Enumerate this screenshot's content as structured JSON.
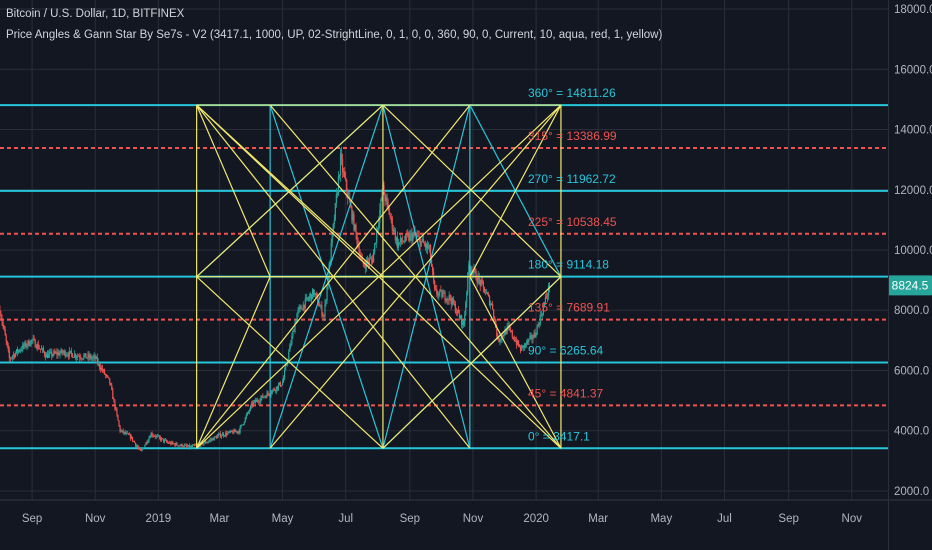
{
  "header": {
    "symbol_line": "Bitcoin / U.S. Dollar, 1D, BITFINEX",
    "indicator_line": "Price Angles & Gann Star By Se7s - V2 (3417.1, 1000, UP, 02-StrightLine, 0, 1, 0, 0, 360, 90, 0, Current, 10, aqua, red, 1, yellow)"
  },
  "colors": {
    "background": "#131722",
    "grid": "#2a2e39",
    "aqua": "#26c6da",
    "red": "#ef5350",
    "yellow": "#f2e86d",
    "candle_up": "#26a69a",
    "candle_down": "#ef5350",
    "axis_text": "#b2b5be",
    "current_price_bg": "#26a69a"
  },
  "chart_data": {
    "type": "candlestick",
    "symbol": "Bitcoin / U.S. Dollar",
    "interval": "1D",
    "exchange": "BITFINEX",
    "x_tick_labels": [
      "Sep",
      "Nov",
      "2019",
      "Mar",
      "May",
      "Jul",
      "Sep",
      "Nov",
      "2020",
      "Mar",
      "May",
      "Jul",
      "Sep",
      "Nov"
    ],
    "y_tick_labels": [
      "2000.0",
      "4000.0",
      "6000.0",
      "8000.0",
      "10000.0",
      "12000.0",
      "14000.0",
      "16000.0",
      "18000.0"
    ],
    "y_ticks": [
      2000,
      4000,
      6000,
      8000,
      10000,
      12000,
      14000,
      16000,
      18000
    ],
    "ylim": [
      1700,
      18300
    ],
    "current_price": "8824.5",
    "price_path": [
      [
        "2018-08-01",
        8000
      ],
      [
        "2018-08-10",
        6400
      ],
      [
        "2018-08-20",
        6700
      ],
      [
        "2018-09-01",
        7000
      ],
      [
        "2018-09-15",
        6500
      ],
      [
        "2018-10-01",
        6600
      ],
      [
        "2018-10-15",
        6500
      ],
      [
        "2018-11-01",
        6400
      ],
      [
        "2018-11-15",
        5600
      ],
      [
        "2018-11-25",
        4000
      ],
      [
        "2018-12-05",
        3800
      ],
      [
        "2018-12-15",
        3300
      ],
      [
        "2018-12-25",
        3900
      ],
      [
        "2019-01-10",
        3600
      ],
      [
        "2019-02-01",
        3450
      ],
      [
        "2019-02-15",
        3600
      ],
      [
        "2019-03-01",
        3850
      ],
      [
        "2019-03-20",
        4000
      ],
      [
        "2019-04-02",
        4900
      ],
      [
        "2019-04-20",
        5300
      ],
      [
        "2019-05-01",
        5600
      ],
      [
        "2019-05-15",
        7900
      ],
      [
        "2019-05-31",
        8600
      ],
      [
        "2019-06-10",
        7800
      ],
      [
        "2019-06-26",
        13000
      ],
      [
        "2019-07-05",
        11500
      ],
      [
        "2019-07-17",
        9500
      ],
      [
        "2019-07-27",
        9700
      ],
      [
        "2019-08-06",
        12000
      ],
      [
        "2019-08-20",
        10200
      ],
      [
        "2019-09-05",
        10500
      ],
      [
        "2019-09-20",
        10000
      ],
      [
        "2019-09-25",
        8600
      ],
      [
        "2019-10-10",
        8400
      ],
      [
        "2019-10-23",
        7500
      ],
      [
        "2019-10-28",
        9500
      ],
      [
        "2019-11-10",
        8800
      ],
      [
        "2019-11-20",
        8100
      ],
      [
        "2019-11-25",
        7000
      ],
      [
        "2019-12-05",
        7400
      ],
      [
        "2019-12-17",
        6700
      ],
      [
        "2019-12-31",
        7200
      ],
      [
        "2020-01-08",
        8100
      ],
      [
        "2020-01-14",
        8824.5
      ]
    ],
    "gann_levels": [
      {
        "label": "0° = 3417.1",
        "value": 3417.1,
        "color": "aqua",
        "style": "solid"
      },
      {
        "label": "45° = 4841.37",
        "value": 4841.37,
        "color": "red",
        "style": "dashed"
      },
      {
        "label": "90° = 6265.64",
        "value": 6265.64,
        "color": "aqua",
        "style": "solid"
      },
      {
        "label": "135° = 7689.91",
        "value": 7689.91,
        "color": "red",
        "style": "dashed"
      },
      {
        "label": "180° = 9114.18",
        "value": 9114.18,
        "color": "aqua",
        "style": "solid"
      },
      {
        "label": "225° = 10538.45",
        "value": 10538.45,
        "color": "red",
        "style": "dashed"
      },
      {
        "label": "270° = 11962.72",
        "value": 11962.72,
        "color": "aqua",
        "style": "solid"
      },
      {
        "label": "315° = 13386.99",
        "value": 13386.99,
        "color": "red",
        "style": "dashed"
      },
      {
        "label": "360° = 14811.26",
        "value": 14811.26,
        "color": "aqua",
        "style": "solid"
      }
    ],
    "gann_star": {
      "x_dates": [
        "2019-02-07",
        "2019-04-19",
        "2019-08-06",
        "2019-10-29",
        "2020-01-25"
      ],
      "price_low": 3417.1,
      "price_mid": 9114.18,
      "price_high": 14811.26
    },
    "grid": true
  }
}
